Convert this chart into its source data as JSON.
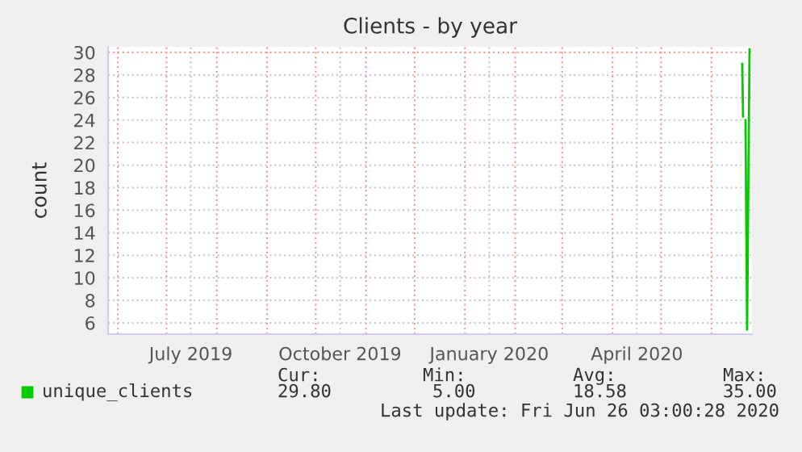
{
  "chart_data": {
    "type": "line",
    "title": "Clients - by year",
    "ylabel": "count",
    "x": [
      "2020-06-20",
      "2020-06-20T12:00",
      "2020-06-21",
      "2020-06-22",
      "2020-06-23",
      "2020-06-24T12:00"
    ],
    "series": [
      {
        "name": "unique_clients",
        "color": "#00cc00",
        "values": [
          29,
          24.3,
          null,
          24,
          5.4,
          30.3
        ]
      }
    ],
    "xlim": [
      "2019-05-26",
      "2020-06-26"
    ],
    "xticks": [
      {
        "value": "2019-06-01",
        "label": null
      },
      {
        "value": "2019-07-01",
        "label": null
      },
      {
        "value": "2019-07-16",
        "label": "July 2019"
      },
      {
        "value": "2019-08-01",
        "label": null
      },
      {
        "value": "2019-09-01",
        "label": null
      },
      {
        "value": "2019-10-01",
        "label": null
      },
      {
        "value": "2019-10-16",
        "label": "October 2019"
      },
      {
        "value": "2019-11-01",
        "label": null
      },
      {
        "value": "2019-12-01",
        "label": null
      },
      {
        "value": "2020-01-01",
        "label": null
      },
      {
        "value": "2020-01-16",
        "label": "January 2020"
      },
      {
        "value": "2020-02-01",
        "label": null
      },
      {
        "value": "2020-03-01",
        "label": null
      },
      {
        "value": "2020-04-01",
        "label": null
      },
      {
        "value": "2020-04-16",
        "label": "April 2020"
      },
      {
        "value": "2020-05-01",
        "label": null
      },
      {
        "value": "2020-06-01",
        "label": null
      }
    ],
    "ylim": [
      5,
      30.5
    ],
    "yticks": [
      6,
      8,
      10,
      12,
      14,
      16,
      18,
      20,
      22,
      24,
      26,
      28,
      30
    ],
    "grid": true,
    "legend": "bottom",
    "annotations": [
      "Cur:",
      "Min:",
      "Avg:",
      "Max:",
      "29.80",
      "5.00",
      "18.58",
      "35.00",
      "Last update: Fri Jun 26 03:00:28 2020"
    ]
  }
}
